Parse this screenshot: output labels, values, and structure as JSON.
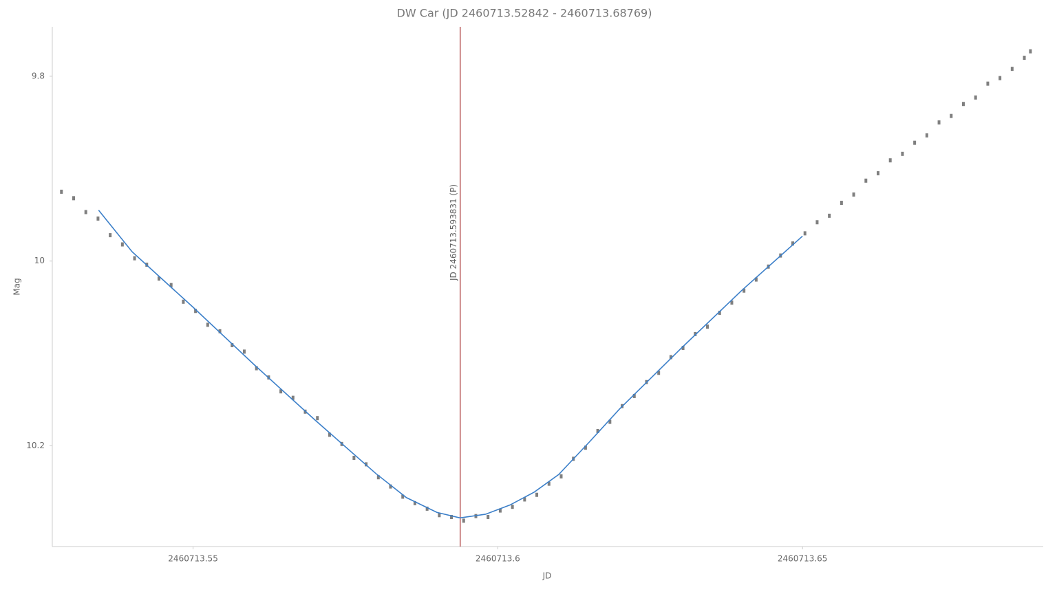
{
  "chart_data": {
    "type": "scatter",
    "title": "DW Car (JD 2460713.52842 - 2460713.68769)",
    "x_label": "JD",
    "y_label": "Mag",
    "xlim": [
      2460713.5269,
      2460713.6895
    ],
    "ylim": [
      9.7465,
      10.309
    ],
    "y_inverted": true,
    "xticks": [
      2460713.55,
      2460713.6,
      2460713.65
    ],
    "yticks": [
      9.8,
      10,
      10.2
    ],
    "annotation": {
      "x": 2460713.593831,
      "label": "JD 2460713.593831 (P)",
      "color": "#a52a2a"
    },
    "series": [
      {
        "style": "points",
        "color": "#7f7f7f",
        "x": [
          2460713.5284,
          2460713.5304,
          2460713.5324,
          2460713.5344,
          2460713.5364,
          2460713.5384,
          2460713.5404,
          2460713.5424,
          2460713.5444,
          2460713.5464,
          2460713.5484,
          2460713.5504,
          2460713.5524,
          2460713.5544,
          2460713.5564,
          2460713.5584,
          2460713.5604,
          2460713.5624,
          2460713.5644,
          2460713.5664,
          2460713.5684,
          2460713.5704,
          2460713.5724,
          2460713.5744,
          2460713.5764,
          2460713.5784,
          2460713.5804,
          2460713.5824,
          2460713.5844,
          2460713.5864,
          2460713.5884,
          2460713.5904,
          2460713.5924,
          2460713.5944,
          2460713.5964,
          2460713.5984,
          2460713.6004,
          2460713.6024,
          2460713.6044,
          2460713.6064,
          2460713.6084,
          2460713.6104,
          2460713.6124,
          2460713.6144,
          2460713.6164,
          2460713.6184,
          2460713.6204,
          2460713.6224,
          2460713.6244,
          2460713.6264,
          2460713.6284,
          2460713.6304,
          2460713.6324,
          2460713.6344,
          2460713.6364,
          2460713.6384,
          2460713.6404,
          2460713.6424,
          2460713.6444,
          2460713.6464,
          2460713.6484,
          2460713.6504,
          2460713.6524,
          2460713.6544,
          2460713.6564,
          2460713.6584,
          2460713.6604,
          2460713.6624,
          2460713.6644,
          2460713.6664,
          2460713.6684,
          2460713.6704,
          2460713.6724,
          2460713.6744,
          2460713.6764,
          2460713.6784,
          2460713.6804,
          2460713.6824,
          2460713.6844,
          2460713.6864,
          2460713.6874
        ],
        "values": [
          9.925,
          9.932,
          9.947,
          9.954,
          9.972,
          9.982,
          9.997,
          10.004,
          10.019,
          10.026,
          10.044,
          10.054,
          10.069,
          10.076,
          10.091,
          10.098,
          10.116,
          10.126,
          10.141,
          10.148,
          10.163,
          10.17,
          10.188,
          10.198,
          10.213,
          10.22,
          10.234,
          10.244,
          10.255,
          10.262,
          10.268,
          10.275,
          10.277,
          10.281,
          10.276,
          10.277,
          10.27,
          10.266,
          10.258,
          10.253,
          10.241,
          10.233,
          10.214,
          10.202,
          10.184,
          10.174,
          10.157,
          10.146,
          10.131,
          10.121,
          10.104,
          10.094,
          10.079,
          10.071,
          10.056,
          10.045,
          10.032,
          10.02,
          10.006,
          9.994,
          9.981,
          9.97,
          9.958,
          9.951,
          9.937,
          9.928,
          9.913,
          9.905,
          9.891,
          9.884,
          9.872,
          9.864,
          9.85,
          9.843,
          9.83,
          9.823,
          9.808,
          9.802,
          9.792,
          9.78,
          9.773
        ]
      },
      {
        "style": "line",
        "color": "#3b7fc9",
        "x": [
          2460713.5345,
          2460713.54,
          2460713.55,
          2460713.56,
          2460713.57,
          2460713.58,
          2460713.585,
          2460713.59,
          2460713.5938,
          2460713.598,
          2460713.602,
          2460713.606,
          2460713.61,
          2460713.615,
          2460713.62,
          2460713.63,
          2460713.64,
          2460713.65
        ],
        "values": [
          9.945,
          9.99,
          10.05,
          10.112,
          10.172,
          10.23,
          10.256,
          10.272,
          10.278,
          10.274,
          10.264,
          10.25,
          10.231,
          10.196,
          10.16,
          10.095,
          10.032,
          9.973
        ]
      }
    ]
  }
}
